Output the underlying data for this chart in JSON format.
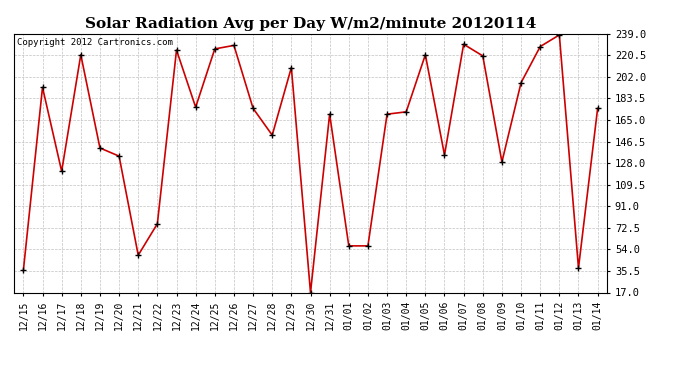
{
  "title": "Solar Radiation Avg per Day W/m2/minute 20120114",
  "copyright": "Copyright 2012 Cartronics.com",
  "labels": [
    "12/15",
    "12/16",
    "12/17",
    "12/18",
    "12/19",
    "12/20",
    "12/21",
    "12/22",
    "12/23",
    "12/24",
    "12/25",
    "12/26",
    "12/27",
    "12/28",
    "12/29",
    "12/30",
    "12/31",
    "01/01",
    "01/02",
    "01/03",
    "01/04",
    "01/05",
    "01/06",
    "01/07",
    "01/08",
    "01/09",
    "01/10",
    "01/11",
    "01/12",
    "01/13",
    "01/14"
  ],
  "values": [
    36,
    193,
    121,
    221,
    141,
    134,
    49,
    76,
    225,
    176,
    226,
    229,
    175,
    152,
    210,
    17,
    170,
    57,
    57,
    170,
    172,
    221,
    135,
    230,
    220,
    129,
    197,
    228,
    238,
    38,
    175
  ],
  "yticks": [
    17.0,
    35.5,
    54.0,
    72.5,
    91.0,
    109.5,
    128.0,
    146.5,
    165.0,
    183.5,
    202.0,
    220.5,
    239.0
  ],
  "line_color": "#cc0000",
  "marker_color": "#000000",
  "bg_color": "#ffffff",
  "grid_color": "#bbbbbb",
  "title_fontsize": 11,
  "copyright_fontsize": 6.5,
  "tick_fontsize": 7,
  "ytick_fontsize": 7.5
}
